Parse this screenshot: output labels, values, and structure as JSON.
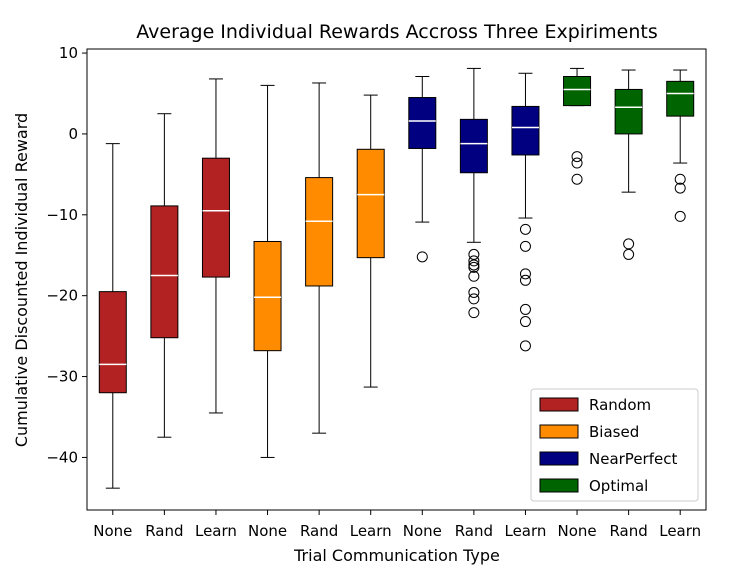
{
  "chart_data": {
    "type": "boxplot",
    "title": "Average Individual Rewards Accross Three Expiriments",
    "xlabel": "Trial Communication Type",
    "ylabel": "Cumulative Discounted Individual Reward",
    "ylim": [
      -46.5,
      10.5
    ],
    "yticks": [
      10,
      0,
      -10,
      -20,
      -30,
      -40
    ],
    "categories": [
      "None",
      "Rand",
      "Learn",
      "None",
      "Rand",
      "Learn",
      "None",
      "Rand",
      "Learn",
      "None",
      "Rand",
      "Learn"
    ],
    "legend": {
      "position": "lower-right"
    },
    "series": [
      {
        "name": "Random",
        "color": "#b22222",
        "boxes": [
          {
            "whislo": -43.8,
            "q1": -32.0,
            "med": -28.5,
            "q3": -19.5,
            "whishi": -1.2,
            "fliers": []
          },
          {
            "whislo": -37.5,
            "q1": -25.2,
            "med": -17.5,
            "q3": -8.9,
            "whishi": 2.5,
            "fliers": []
          },
          {
            "whislo": -34.5,
            "q1": -17.7,
            "med": -9.5,
            "q3": -3.0,
            "whishi": 6.8,
            "fliers": []
          }
        ]
      },
      {
        "name": "Biased",
        "color": "#ff8c00",
        "boxes": [
          {
            "whislo": -40.0,
            "q1": -26.8,
            "med": -20.2,
            "q3": -13.3,
            "whishi": 6.0,
            "fliers": []
          },
          {
            "whislo": -37.0,
            "q1": -18.8,
            "med": -10.8,
            "q3": -5.4,
            "whishi": 6.3,
            "fliers": []
          },
          {
            "whislo": -31.3,
            "q1": -15.3,
            "med": -7.5,
            "q3": -1.9,
            "whishi": 4.8,
            "fliers": []
          }
        ]
      },
      {
        "name": "NearPerfect",
        "color": "#000080",
        "boxes": [
          {
            "whislo": -10.9,
            "q1": -1.8,
            "med": 1.6,
            "q3": 4.5,
            "whishi": 7.1,
            "fliers": [
              -15.2
            ]
          },
          {
            "whislo": -13.4,
            "q1": -4.8,
            "med": -1.2,
            "q3": 1.8,
            "whishi": 8.1,
            "fliers": [
              -14.9,
              -15.7,
              -16.2,
              -16.5,
              -17.6,
              -19.6,
              -20.4,
              -22.1
            ]
          },
          {
            "whislo": -10.4,
            "q1": -2.6,
            "med": 0.8,
            "q3": 3.4,
            "whishi": 7.5,
            "fliers": [
              -11.8,
              -13.9,
              -17.3,
              -18.1,
              -21.7,
              -23.2,
              -26.2
            ]
          }
        ]
      },
      {
        "name": "Optimal",
        "color": "#006400",
        "boxes": [
          {
            "whislo": 3.5,
            "q1": 3.5,
            "med": 5.5,
            "q3": 7.1,
            "whishi": 8.1,
            "fliers": [
              -2.8,
              -3.6,
              -5.6
            ]
          },
          {
            "whislo": -7.2,
            "q1": 0.0,
            "med": 3.3,
            "q3": 5.5,
            "whishi": 7.9,
            "fliers": [
              -13.6,
              -14.9
            ]
          },
          {
            "whislo": -3.6,
            "q1": 2.2,
            "med": 5.0,
            "q3": 6.5,
            "whishi": 7.9,
            "fliers": [
              -5.6,
              -6.7,
              -10.2
            ]
          }
        ]
      }
    ]
  }
}
